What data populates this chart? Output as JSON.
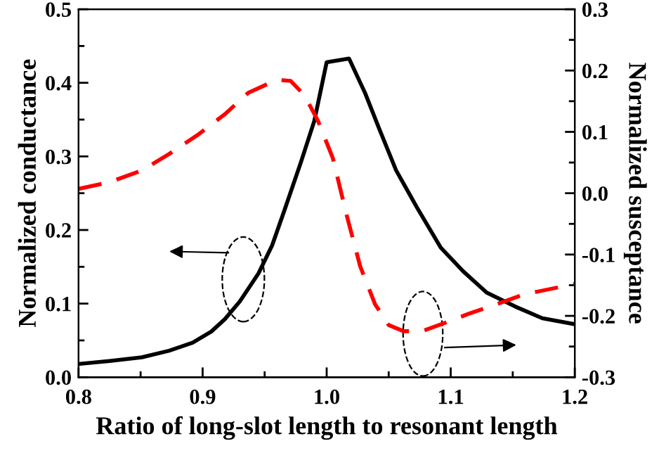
{
  "chart_data": {
    "type": "line",
    "xlabel": "Ratio of long-slot length to resonant length",
    "ylabel": "Normalized conductance",
    "y2label": "Normalized susceptance",
    "xlim": [
      0.8,
      1.2
    ],
    "xticks": [
      0.8,
      0.9,
      {
        "value": 1.0,
        "label": "1.0"
      },
      1.1,
      1.2
    ],
    "ylim": [
      0,
      0.5
    ],
    "yticks": [
      {
        "value": 0,
        "label": "0.0"
      },
      0.1,
      0.2,
      0.3,
      0.4,
      0.5
    ],
    "y2lim": [
      -0.3,
      0.3
    ],
    "y2ticks": [
      {
        "value": -0.3,
        "label": "-0.3"
      },
      {
        "value": -0.2,
        "label": "-0.2"
      },
      {
        "value": -0.1,
        "label": "-0.1"
      },
      {
        "value": 0,
        "label": "0.0"
      },
      0.1,
      0.2,
      0.3
    ],
    "legend": false,
    "grid": false,
    "series": [
      {
        "color": "#000000",
        "line_style": "solid",
        "x": [
          0.8,
          0.825,
          0.851,
          0.873,
          0.892,
          0.907,
          0.918,
          0.93,
          0.945,
          0.956,
          0.966,
          0.979,
          0.99,
          1.0,
          1.018,
          1.031,
          1.042,
          1.056,
          1.073,
          1.092,
          1.11,
          1.129,
          1.152,
          1.174,
          1.2
        ],
        "values": [
          0.018,
          0.022,
          0.027,
          0.036,
          0.047,
          0.062,
          0.079,
          0.103,
          0.141,
          0.179,
          0.227,
          0.291,
          0.348,
          0.428,
          0.433,
          0.386,
          0.339,
          0.281,
          0.23,
          0.176,
          0.144,
          0.115,
          0.096,
          0.08,
          0.072
        ]
      },
      {
        "color": "#ff0000",
        "line_style": "dashed",
        "axis": "y2",
        "x": [
          0.8,
          0.825,
          0.851,
          0.873,
          0.896,
          0.918,
          0.937,
          0.96,
          0.971,
          0.982,
          0.993,
          1.005,
          1.016,
          1.027,
          1.039,
          1.05,
          1.062,
          1.077,
          1.096,
          1.114,
          1.137,
          1.159,
          1.2
        ],
        "values": [
          0.007,
          0.018,
          0.037,
          0.064,
          0.095,
          0.129,
          0.164,
          0.185,
          0.183,
          0.16,
          0.118,
          0.057,
          -0.035,
          -0.119,
          -0.181,
          -0.215,
          -0.225,
          -0.225,
          -0.211,
          -0.197,
          -0.181,
          -0.165,
          -0.148
        ]
      }
    ]
  }
}
